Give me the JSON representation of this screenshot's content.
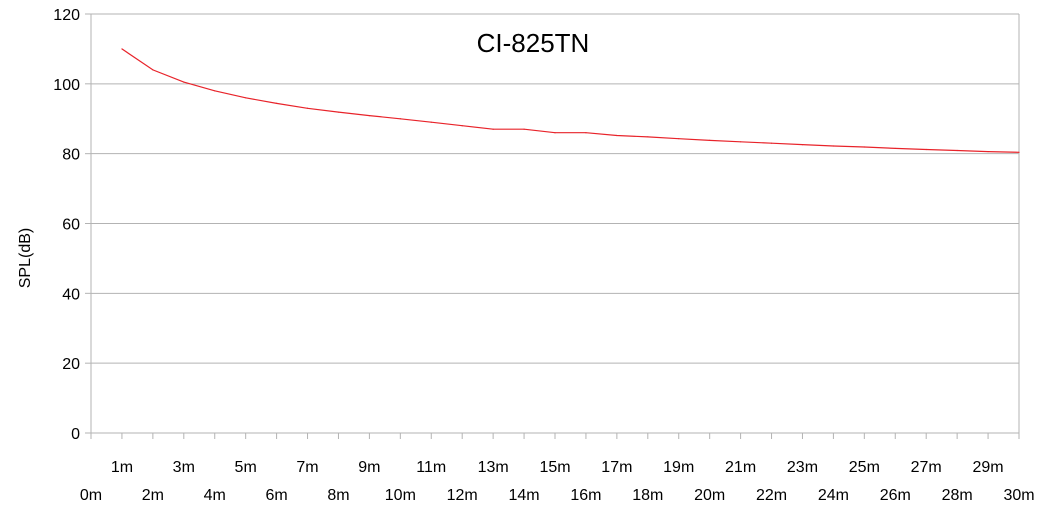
{
  "chart_data": {
    "type": "line",
    "title": "CI-825TN",
    "xlabel": "",
    "ylabel": "SPL(dB)",
    "ylim": [
      0,
      120
    ],
    "y_ticks": [
      0,
      20,
      40,
      60,
      80,
      100,
      120
    ],
    "grid": true,
    "legend": "none",
    "categories": [
      "0m",
      "1m",
      "2m",
      "3m",
      "4m",
      "5m",
      "6m",
      "7m",
      "8m",
      "9m",
      "10m",
      "11m",
      "12m",
      "13m",
      "14m",
      "15m",
      "16m",
      "17m",
      "18m",
      "19m",
      "20m",
      "21m",
      "22m",
      "23m",
      "24m",
      "25m",
      "26m",
      "27m",
      "28m",
      "29m",
      "30m"
    ],
    "series": [
      {
        "color": "#e8232a",
        "x": [
          "1m",
          "2m",
          "3m",
          "4m",
          "5m",
          "6m",
          "7m",
          "8m",
          "9m",
          "10m",
          "11m",
          "12m",
          "13m",
          "14m",
          "15m",
          "16m",
          "17m",
          "18m",
          "19m",
          "20m",
          "21m",
          "22m",
          "23m",
          "24m",
          "25m",
          "26m",
          "27m",
          "28m",
          "29m",
          "30m"
        ],
        "values": [
          110,
          104,
          100.5,
          98,
          96,
          94.4,
          93,
          91.9,
          90.9,
          90,
          89,
          88,
          87,
          87,
          86,
          86,
          85.2,
          84.8,
          84.3,
          83.8,
          83.4,
          83,
          82.6,
          82.2,
          81.9,
          81.5,
          81.2,
          80.9,
          80.6,
          80.4
        ]
      }
    ]
  }
}
